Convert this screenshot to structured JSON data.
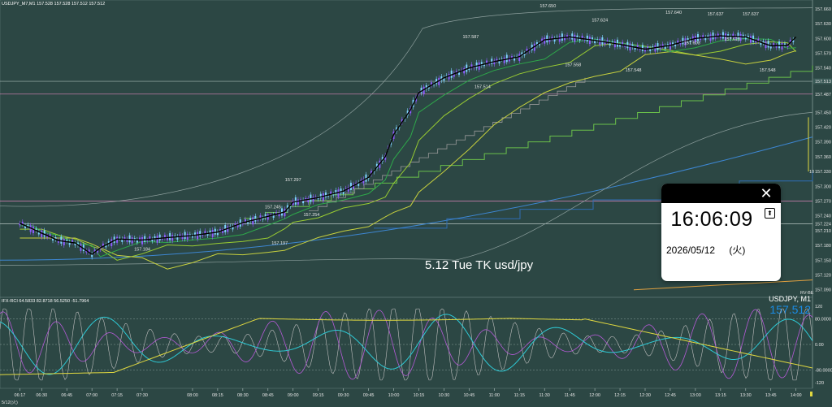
{
  "window": {
    "title": "USDJPY_M7,M1 157.528 157.528 157.512 157.512",
    "timeframe": "M1"
  },
  "caption": "5.12 Tue TK usd/jpy",
  "clock_popup": {
    "time": "16:06:09",
    "date": "2026/05/12",
    "weekday": "(火)",
    "close_icon": "close-icon",
    "pin_icon": "pin-icon"
  },
  "subwindow": {
    "header": "IFX-RCI 64.5833 82.8718 56.5250 -51.7964",
    "symbol_label": "USDJPY, M1",
    "price_label": "157.512",
    "small_label": "RV-BE",
    "levels": [
      "120",
      "80.0000",
      "0.00",
      "-80.0000",
      "-120"
    ]
  },
  "side_marks": {
    "left_10": "10"
  },
  "colors": {
    "background": "#2c4744",
    "bullish_candle": "#7fd3ff",
    "bearish_candle": "#8e5cff",
    "price_line": "#000000",
    "ma_fast": "#2ea84a",
    "ma_mid": "#d8e050",
    "ma_slow": "#9acd32",
    "step_line_green": "#6ac04a",
    "step_line_blue": "#2f6db3",
    "step_line_grey": "#9a9a9a",
    "horizontal_pink": "#d985b8",
    "rci_short": "#bfbfbf",
    "rci_mid": "#b45ad6",
    "rci_cyan": "#2ecad6",
    "rci_long": "#e0d840",
    "price_badge_blue": "#1a8ce6"
  },
  "chart_data": {
    "type": "line",
    "title": "",
    "symbol": "USDJPY",
    "x_tick_labels": [
      "06:17",
      "06:30",
      "06:45",
      "07:00",
      "07:15",
      "07:30",
      "08:00",
      "08:15",
      "08:30",
      "08:45",
      "09:00",
      "09:15",
      "09:30",
      "09:45",
      "10:00",
      "10:15",
      "10:30",
      "10:45",
      "11:00",
      "11:15",
      "11:30",
      "11:45",
      "12:00",
      "12:15",
      "12:30",
      "12:45",
      "13:00",
      "13:15",
      "13:30",
      "13:45",
      "14:00"
    ],
    "date_label": "5/12(火)",
    "y_tick_labels": [
      "157.660",
      "157.630",
      "157.600",
      "157.570",
      "157.540",
      "157.513",
      "157.487",
      "157.450",
      "157.420",
      "157.390",
      "157.360",
      "157.330",
      "157.300",
      "157.270",
      "157.240",
      "157.224",
      "157.210",
      "157.180",
      "157.150",
      "157.120",
      "157.090"
    ],
    "y_ticks_values": [
      157.66,
      157.63,
      157.6,
      157.57,
      157.54,
      157.513,
      157.487,
      157.45,
      157.42,
      157.39,
      157.36,
      157.33,
      157.3,
      157.27,
      157.24,
      157.224,
      157.21,
      157.18,
      157.15,
      157.12,
      157.09
    ],
    "ylim": [
      157.078,
      157.668
    ],
    "price_marks": [
      {
        "label": "157.650",
        "value": 157.65
      },
      {
        "label": "157.624",
        "value": 157.624
      },
      {
        "label": "157.640",
        "value": 157.64
      },
      {
        "label": "157.637",
        "value": 157.637
      },
      {
        "label": "157.637",
        "value": 157.637
      },
      {
        "label": "157.603",
        "value": 157.603
      },
      {
        "label": "157.610",
        "value": 157.61
      },
      {
        "label": "157.587",
        "value": 157.587
      },
      {
        "label": "157.558",
        "value": 157.558
      },
      {
        "label": "157.548",
        "value": 157.548
      },
      {
        "label": "157.548",
        "value": 157.548
      },
      {
        "label": "157.514",
        "value": 157.514
      },
      {
        "label": "157.297",
        "value": 157.297
      },
      {
        "label": "157.245",
        "value": 157.245
      },
      {
        "label": "157.254",
        "value": 157.254
      },
      {
        "label": "157.197",
        "value": 157.197
      },
      {
        "label": "157.184",
        "value": 157.184
      }
    ],
    "price_series": [
      {
        "t": "06:17",
        "v": 157.225
      },
      {
        "t": "06:25",
        "v": 157.213
      },
      {
        "t": "06:30",
        "v": 157.205
      },
      {
        "t": "06:40",
        "v": 157.19
      },
      {
        "t": "06:50",
        "v": 157.185
      },
      {
        "t": "07:00",
        "v": 157.162
      },
      {
        "t": "07:05",
        "v": 157.175
      },
      {
        "t": "07:15",
        "v": 157.193
      },
      {
        "t": "07:30",
        "v": 157.191
      },
      {
        "t": "07:45",
        "v": 157.196
      },
      {
        "t": "08:00",
        "v": 157.2
      },
      {
        "t": "08:15",
        "v": 157.207
      },
      {
        "t": "08:30",
        "v": 157.226
      },
      {
        "t": "08:45",
        "v": 157.239
      },
      {
        "t": "08:55",
        "v": 157.248
      },
      {
        "t": "09:00",
        "v": 157.268
      },
      {
        "t": "09:15",
        "v": 157.277
      },
      {
        "t": "09:30",
        "v": 157.29
      },
      {
        "t": "09:45",
        "v": 157.318
      },
      {
        "t": "09:55",
        "v": 157.36
      },
      {
        "t": "10:00",
        "v": 157.405
      },
      {
        "t": "10:10",
        "v": 157.455
      },
      {
        "t": "10:15",
        "v": 157.49
      },
      {
        "t": "10:30",
        "v": 157.52
      },
      {
        "t": "10:45",
        "v": 157.54
      },
      {
        "t": "11:00",
        "v": 157.553
      },
      {
        "t": "11:15",
        "v": 157.563
      },
      {
        "t": "11:30",
        "v": 157.597
      },
      {
        "t": "11:45",
        "v": 157.603
      },
      {
        "t": "12:00",
        "v": 157.596
      },
      {
        "t": "12:15",
        "v": 157.588
      },
      {
        "t": "12:30",
        "v": 157.578
      },
      {
        "t": "12:45",
        "v": 157.586
      },
      {
        "t": "13:00",
        "v": 157.6
      },
      {
        "t": "13:15",
        "v": 157.605
      },
      {
        "t": "13:30",
        "v": 157.603
      },
      {
        "t": "13:45",
        "v": 157.585
      },
      {
        "t": "13:55",
        "v": 157.586
      },
      {
        "t": "14:00",
        "v": 157.603
      }
    ],
    "indicator_rci": {
      "header": "IFX-RCI 64.5833 82.8718 56.5250 -51.7964",
      "values": [
        64.5833,
        82.8718,
        56.525,
        -51.7964
      ],
      "range": [
        -120,
        120
      ],
      "levels": [
        80,
        0,
        -80
      ]
    },
    "grid": false
  }
}
